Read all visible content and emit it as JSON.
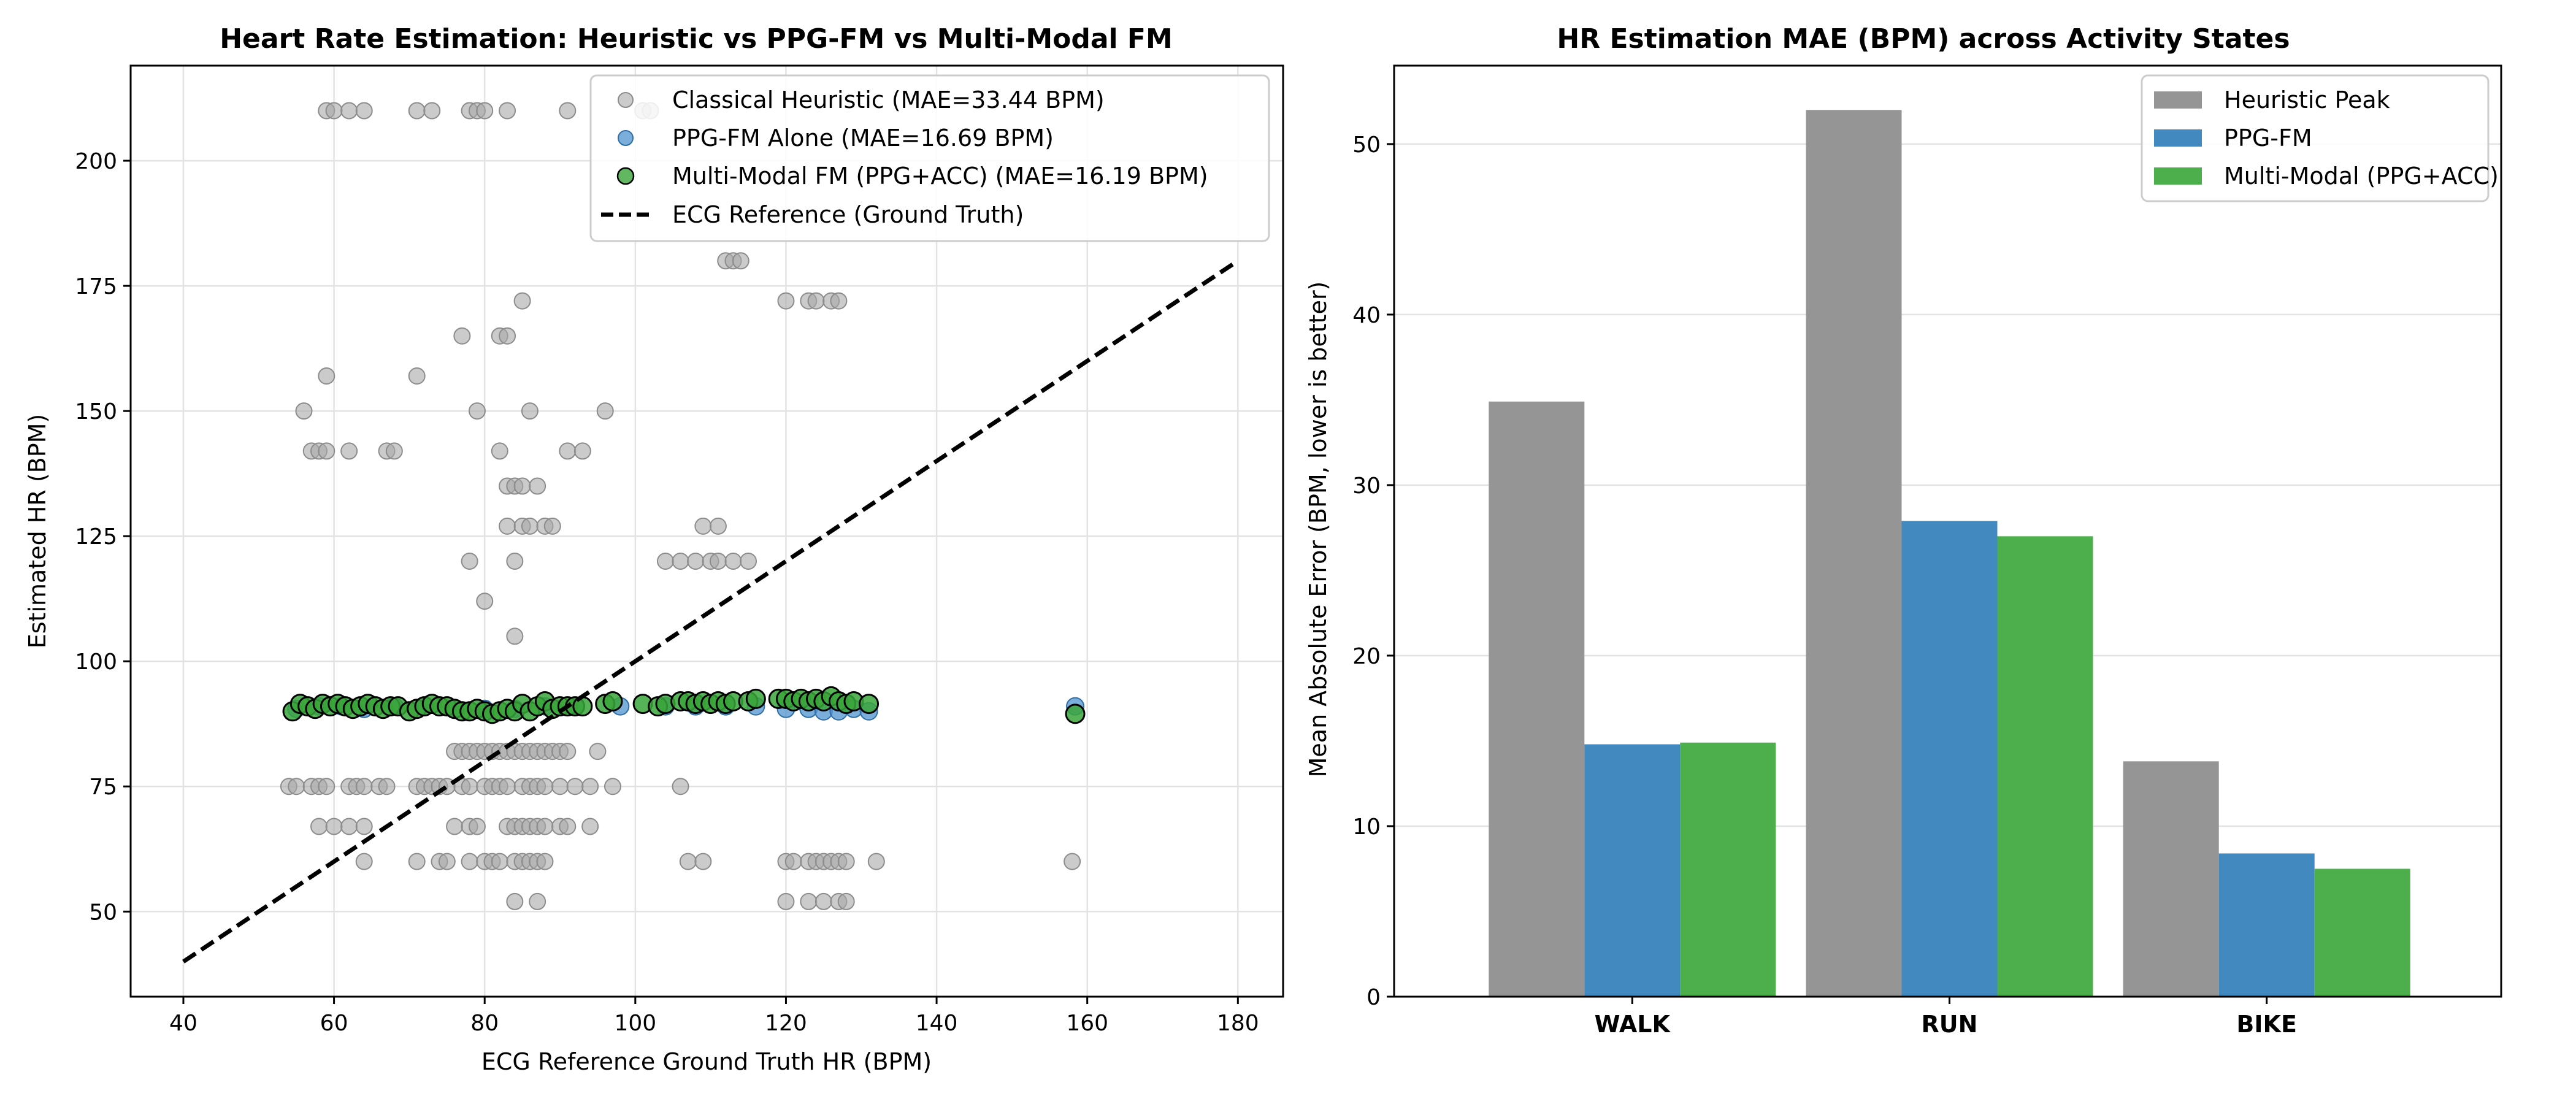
{
  "chart_data": [
    {
      "type": "scatter",
      "title": "Heart Rate Estimation: Heuristic vs PPG-FM vs Multi-Modal FM",
      "xlabel": "ECG Reference Ground Truth HR (BPM)",
      "ylabel": "Estimated HR (BPM)",
      "xlim": [
        33,
        186
      ],
      "ylim": [
        33,
        219
      ],
      "xticks": [
        40,
        60,
        80,
        100,
        120,
        140,
        160,
        180
      ],
      "yticks": [
        50,
        75,
        100,
        125,
        150,
        175,
        200
      ],
      "grid": true,
      "legend_position": "top-right",
      "series": [
        {
          "name": "Classical Heuristic (MAE=33.44 BPM)",
          "color": "#a8a8a8",
          "points": [
            [
              59,
              210
            ],
            [
              60,
              210
            ],
            [
              62,
              210
            ],
            [
              64,
              210
            ],
            [
              71,
              210
            ],
            [
              73,
              210
            ],
            [
              78,
              210
            ],
            [
              79,
              210
            ],
            [
              80,
              210
            ],
            [
              83,
              210
            ],
            [
              91,
              210
            ],
            [
              101,
              210
            ],
            [
              102,
              210
            ],
            [
              112,
              180
            ],
            [
              113,
              180
            ],
            [
              114,
              180
            ],
            [
              85,
              172
            ],
            [
              120,
              172
            ],
            [
              123,
              172
            ],
            [
              124,
              172
            ],
            [
              126,
              172
            ],
            [
              127,
              172
            ],
            [
              59,
              157
            ],
            [
              71,
              157
            ],
            [
              77,
              165
            ],
            [
              82,
              165
            ],
            [
              83,
              165
            ],
            [
              56,
              150
            ],
            [
              79,
              150
            ],
            [
              86,
              150
            ],
            [
              96,
              150
            ],
            [
              57,
              142
            ],
            [
              58,
              142
            ],
            [
              59,
              142
            ],
            [
              62,
              142
            ],
            [
              67,
              142
            ],
            [
              68,
              142
            ],
            [
              82,
              142
            ],
            [
              91,
              142
            ],
            [
              93,
              142
            ],
            [
              83,
              135
            ],
            [
              84,
              135
            ],
            [
              85,
              135
            ],
            [
              87,
              135
            ],
            [
              83,
              127
            ],
            [
              85,
              127
            ],
            [
              86,
              127
            ],
            [
              88,
              127
            ],
            [
              89,
              127
            ],
            [
              109,
              127
            ],
            [
              111,
              127
            ],
            [
              78,
              120
            ],
            [
              84,
              120
            ],
            [
              104,
              120
            ],
            [
              106,
              120
            ],
            [
              108,
              120
            ],
            [
              110,
              120
            ],
            [
              111,
              120
            ],
            [
              113,
              120
            ],
            [
              115,
              120
            ],
            [
              80,
              112
            ],
            [
              84,
              105
            ],
            [
              76,
              82
            ],
            [
              77,
              82
            ],
            [
              78,
              82
            ],
            [
              79,
              82
            ],
            [
              80,
              82
            ],
            [
              81,
              82
            ],
            [
              82,
              82
            ],
            [
              83,
              82
            ],
            [
              84,
              82
            ],
            [
              85,
              82
            ],
            [
              86,
              82
            ],
            [
              87,
              82
            ],
            [
              88,
              82
            ],
            [
              89,
              82
            ],
            [
              90,
              82
            ],
            [
              91,
              82
            ],
            [
              95,
              82
            ],
            [
              54,
              75
            ],
            [
              55,
              75
            ],
            [
              57,
              75
            ],
            [
              58,
              75
            ],
            [
              59,
              75
            ],
            [
              62,
              75
            ],
            [
              63,
              75
            ],
            [
              64,
              75
            ],
            [
              66,
              75
            ],
            [
              67,
              75
            ],
            [
              71,
              75
            ],
            [
              72,
              75
            ],
            [
              73,
              75
            ],
            [
              74,
              75
            ],
            [
              75,
              75
            ],
            [
              77,
              75
            ],
            [
              78,
              75
            ],
            [
              80,
              75
            ],
            [
              81,
              75
            ],
            [
              82,
              75
            ],
            [
              83,
              75
            ],
            [
              85,
              75
            ],
            [
              86,
              75
            ],
            [
              87,
              75
            ],
            [
              88,
              75
            ],
            [
              90,
              75
            ],
            [
              92,
              75
            ],
            [
              94,
              75
            ],
            [
              97,
              75
            ],
            [
              106,
              75
            ],
            [
              58,
              67
            ],
            [
              60,
              67
            ],
            [
              62,
              67
            ],
            [
              64,
              67
            ],
            [
              76,
              67
            ],
            [
              78,
              67
            ],
            [
              79,
              67
            ],
            [
              83,
              67
            ],
            [
              84,
              67
            ],
            [
              85,
              67
            ],
            [
              86,
              67
            ],
            [
              87,
              67
            ],
            [
              88,
              67
            ],
            [
              90,
              67
            ],
            [
              91,
              67
            ],
            [
              94,
              67
            ],
            [
              64,
              60
            ],
            [
              71,
              60
            ],
            [
              74,
              60
            ],
            [
              75,
              60
            ],
            [
              78,
              60
            ],
            [
              80,
              60
            ],
            [
              81,
              60
            ],
            [
              82,
              60
            ],
            [
              84,
              60
            ],
            [
              85,
              60
            ],
            [
              86,
              60
            ],
            [
              87,
              60
            ],
            [
              88,
              60
            ],
            [
              107,
              60
            ],
            [
              109,
              60
            ],
            [
              120,
              60
            ],
            [
              121,
              60
            ],
            [
              123,
              60
            ],
            [
              124,
              60
            ],
            [
              125,
              60
            ],
            [
              126,
              60
            ],
            [
              127,
              60
            ],
            [
              128,
              60
            ],
            [
              132,
              60
            ],
            [
              158,
              60
            ],
            [
              84,
              52
            ],
            [
              87,
              52
            ],
            [
              120,
              52
            ],
            [
              123,
              52
            ],
            [
              125,
              52
            ],
            [
              127,
              52
            ],
            [
              128,
              52
            ]
          ]
        },
        {
          "name": "PPG-FM Alone (MAE=16.69 BPM)",
          "color": "#4f93cf",
          "points": [
            [
              55,
              90.5
            ],
            [
              58,
              91
            ],
            [
              61,
              91
            ],
            [
              64,
              90.5
            ],
            [
              68,
              91
            ],
            [
              72,
              91
            ],
            [
              76,
              90.5
            ],
            [
              80,
              90.5
            ],
            [
              84,
              90.5
            ],
            [
              88,
              91
            ],
            [
              92,
              91
            ],
            [
              98,
              91
            ],
            [
              104,
              91
            ],
            [
              108,
              91
            ],
            [
              112,
              91
            ],
            [
              116,
              91
            ],
            [
              120,
              90.5
            ],
            [
              123,
              90.5
            ],
            [
              125,
              90
            ],
            [
              127,
              90
            ],
            [
              129,
              90.5
            ],
            [
              131,
              90
            ],
            [
              158.4,
              91
            ]
          ]
        },
        {
          "name": "Multi-Modal FM (PPG+ACC) (MAE=16.19 BPM)",
          "color": "#3aa63a",
          "points": [
            [
              54.5,
              90
            ],
            [
              55.5,
              91.5
            ],
            [
              56.5,
              91
            ],
            [
              57.5,
              90.5
            ],
            [
              58.5,
              91.5
            ],
            [
              59.5,
              91
            ],
            [
              60.5,
              91.5
            ],
            [
              61.5,
              91
            ],
            [
              62.5,
              90.5
            ],
            [
              63.5,
              91
            ],
            [
              64.5,
              91.5
            ],
            [
              65.5,
              91
            ],
            [
              66.5,
              90.5
            ],
            [
              67.5,
              91
            ],
            [
              68.5,
              91
            ],
            [
              70,
              90
            ],
            [
              71,
              90.5
            ],
            [
              72,
              91
            ],
            [
              73,
              91.5
            ],
            [
              74,
              91
            ],
            [
              75,
              91
            ],
            [
              76,
              90.5
            ],
            [
              77,
              90
            ],
            [
              78,
              90
            ],
            [
              79,
              90.5
            ],
            [
              80,
              90
            ],
            [
              81,
              89.5
            ],
            [
              82,
              90
            ],
            [
              83,
              90.5
            ],
            [
              84,
              90
            ],
            [
              85,
              91.5
            ],
            [
              86,
              90
            ],
            [
              87,
              91
            ],
            [
              88,
              92
            ],
            [
              89,
              90.5
            ],
            [
              90,
              91
            ],
            [
              91,
              91
            ],
            [
              92,
              91
            ],
            [
              93,
              91
            ],
            [
              96,
              91.5
            ],
            [
              97,
              92
            ],
            [
              101,
              91.5
            ],
            [
              103,
              91
            ],
            [
              104,
              91.5
            ],
            [
              106,
              92
            ],
            [
              107,
              92
            ],
            [
              108,
              91.5
            ],
            [
              109,
              92
            ],
            [
              110,
              91.5
            ],
            [
              111,
              92
            ],
            [
              112,
              91.5
            ],
            [
              113,
              92
            ],
            [
              115,
              92
            ],
            [
              116,
              92.5
            ],
            [
              119,
              92.5
            ],
            [
              120,
              92.5
            ],
            [
              121,
              92
            ],
            [
              122,
              92.5
            ],
            [
              123,
              92
            ],
            [
              124,
              92.5
            ],
            [
              125,
              92
            ],
            [
              126,
              93
            ],
            [
              127,
              92
            ],
            [
              128,
              91.5
            ],
            [
              129,
              92
            ],
            [
              131,
              91.5
            ],
            [
              158.4,
              89.5
            ]
          ]
        },
        {
          "name": "ECG Reference (Ground Truth)",
          "color": "#000000",
          "line": [
            [
              40,
              40
            ],
            [
              180,
              180
            ]
          ]
        }
      ]
    },
    {
      "type": "bar",
      "title": "HR Estimation MAE (BPM) across Activity States",
      "xlabel": "",
      "ylabel": "Mean Absolute Error (BPM, lower is better)",
      "ylim": [
        0,
        54.6
      ],
      "yticks": [
        0,
        10,
        20,
        30,
        40,
        50
      ],
      "grid": true,
      "legend_position": "top-right",
      "categories": [
        "WALK",
        "RUN",
        "BIKE"
      ],
      "series": [
        {
          "name": "Heuristic Peak",
          "color": "#959595",
          "values": [
            34.9,
            52.0,
            13.8
          ]
        },
        {
          "name": "PPG-FM",
          "color": "#4289bf",
          "values": [
            14.8,
            27.9,
            8.4
          ]
        },
        {
          "name": "Multi-Modal (PPG+ACC)",
          "color": "#4caf4c",
          "values": [
            14.9,
            27.0,
            7.5
          ]
        }
      ]
    }
  ]
}
